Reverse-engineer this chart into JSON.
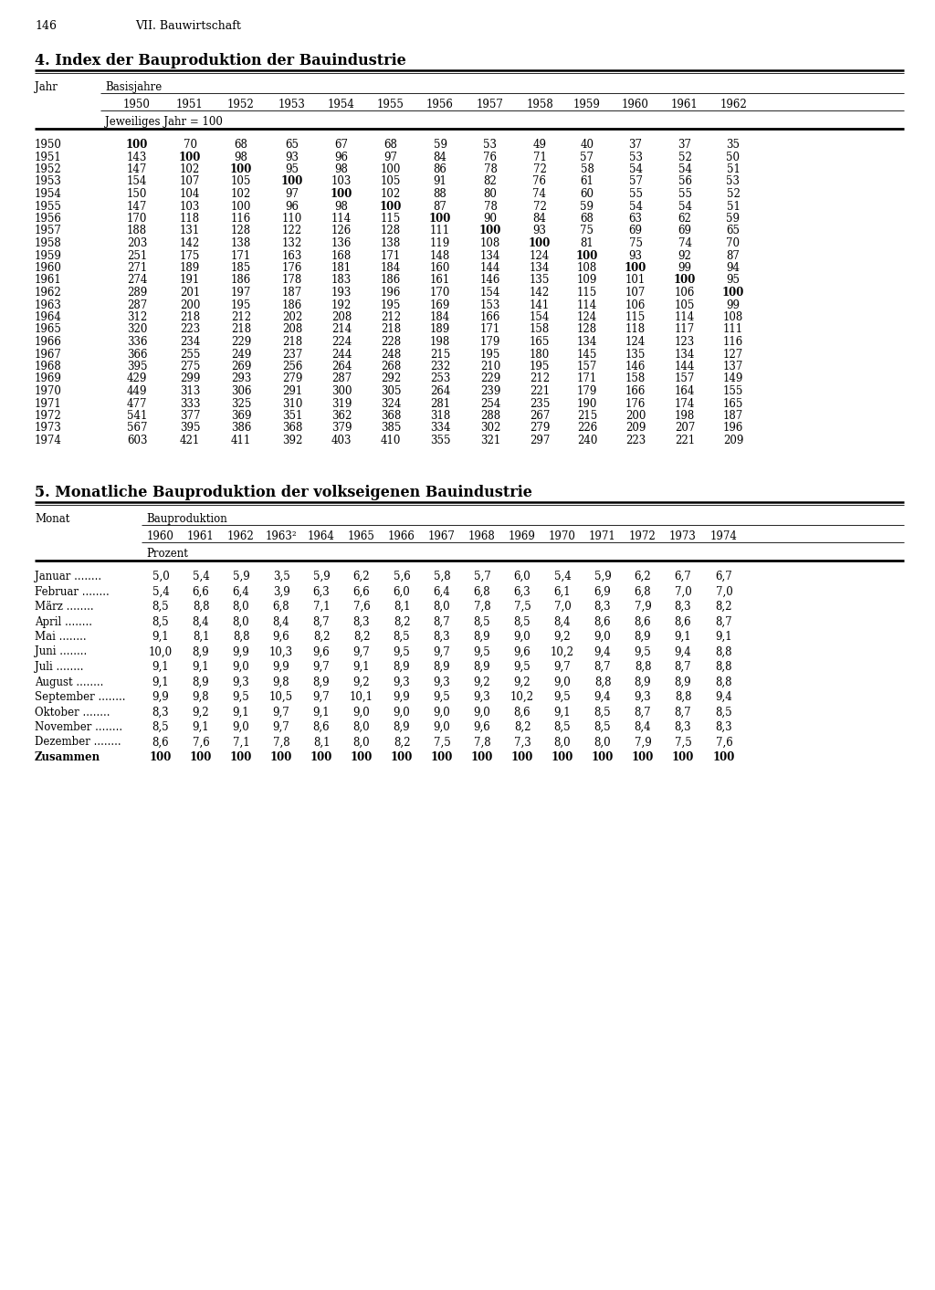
{
  "page_header": "146",
  "page_subheader": "VII. Bauwirtschaft",
  "table1_title": "4. Index der Bauproduktion der Bauindustrie",
  "table1_col_header1": "Jahr",
  "table1_col_header2": "Basisjahre",
  "table1_years_label": "Jeweiliges Jahr = 100",
  "table1_base_years": [
    "1950",
    "1951",
    "1952",
    "1953",
    "1954",
    "1955",
    "1956",
    "1957",
    "1958",
    "1959",
    "1960",
    "1961",
    "1962"
  ],
  "table1_rows": [
    [
      "1950",
      "100",
      "70",
      "68",
      "65",
      "67",
      "68",
      "59",
      "53",
      "49",
      "40",
      "37",
      "37",
      "35"
    ],
    [
      "1951",
      "143",
      "100",
      "98",
      "93",
      "96",
      "97",
      "84",
      "76",
      "71",
      "57",
      "53",
      "52",
      "50"
    ],
    [
      "1952",
      "147",
      "102",
      "100",
      "95",
      "98",
      "100",
      "86",
      "78",
      "72",
      "58",
      "54",
      "54",
      "51"
    ],
    [
      "1953",
      "154",
      "107",
      "105",
      "100",
      "103",
      "105",
      "91",
      "82",
      "76",
      "61",
      "57",
      "56",
      "53"
    ],
    [
      "1954",
      "150",
      "104",
      "102",
      "97",
      "100",
      "102",
      "88",
      "80",
      "74",
      "60",
      "55",
      "55",
      "52"
    ],
    [
      "1955",
      "147",
      "103",
      "100",
      "96",
      "98",
      "100",
      "87",
      "78",
      "72",
      "59",
      "54",
      "54",
      "51"
    ],
    [
      "1956",
      "170",
      "118",
      "116",
      "110",
      "114",
      "115",
      "100",
      "90",
      "84",
      "68",
      "63",
      "62",
      "59"
    ],
    [
      "1957",
      "188",
      "131",
      "128",
      "122",
      "126",
      "128",
      "111",
      "100",
      "93",
      "75",
      "69",
      "69",
      "65"
    ],
    [
      "1958",
      "203",
      "142",
      "138",
      "132",
      "136",
      "138",
      "119",
      "108",
      "100",
      "81",
      "75",
      "74",
      "70"
    ],
    [
      "1959",
      "251",
      "175",
      "171",
      "163",
      "168",
      "171",
      "148",
      "134",
      "124",
      "100",
      "93",
      "92",
      "87"
    ],
    [
      "1960",
      "271",
      "189",
      "185",
      "176",
      "181",
      "184",
      "160",
      "144",
      "134",
      "108",
      "100",
      "99",
      "94"
    ],
    [
      "1961",
      "274",
      "191",
      "186",
      "178",
      "183",
      "186",
      "161",
      "146",
      "135",
      "109",
      "101",
      "100",
      "95"
    ],
    [
      "1962",
      "289",
      "201",
      "197",
      "187",
      "193",
      "196",
      "170",
      "154",
      "142",
      "115",
      "107",
      "106",
      "100"
    ],
    [
      "1963",
      "287",
      "200",
      "195",
      "186",
      "192",
      "195",
      "169",
      "153",
      "141",
      "114",
      "106",
      "105",
      "99"
    ],
    [
      "1964",
      "312",
      "218",
      "212",
      "202",
      "208",
      "212",
      "184",
      "166",
      "154",
      "124",
      "115",
      "114",
      "108"
    ],
    [
      "1965",
      "320",
      "223",
      "218",
      "208",
      "214",
      "218",
      "189",
      "171",
      "158",
      "128",
      "118",
      "117",
      "111"
    ],
    [
      "1966",
      "336",
      "234",
      "229",
      "218",
      "224",
      "228",
      "198",
      "179",
      "165",
      "134",
      "124",
      "123",
      "116"
    ],
    [
      "1967",
      "366",
      "255",
      "249",
      "237",
      "244",
      "248",
      "215",
      "195",
      "180",
      "145",
      "135",
      "134",
      "127"
    ],
    [
      "1968",
      "395",
      "275",
      "269",
      "256",
      "264",
      "268",
      "232",
      "210",
      "195",
      "157",
      "146",
      "144",
      "137"
    ],
    [
      "1969",
      "429",
      "299",
      "293",
      "279",
      "287",
      "292",
      "253",
      "229",
      "212",
      "171",
      "158",
      "157",
      "149"
    ],
    [
      "1970",
      "449",
      "313",
      "306",
      "291",
      "300",
      "305",
      "264",
      "239",
      "221",
      "179",
      "166",
      "164",
      "155"
    ],
    [
      "1971",
      "477",
      "333",
      "325",
      "310",
      "319",
      "324",
      "281",
      "254",
      "235",
      "190",
      "176",
      "174",
      "165"
    ],
    [
      "1972",
      "541",
      "377",
      "369",
      "351",
      "362",
      "368",
      "318",
      "288",
      "267",
      "215",
      "200",
      "198",
      "187"
    ],
    [
      "1973",
      "567",
      "395",
      "386",
      "368",
      "379",
      "385",
      "334",
      "302",
      "279",
      "226",
      "209",
      "207",
      "196"
    ],
    [
      "1974",
      "603",
      "421",
      "411",
      "392",
      "403",
      "410",
      "355",
      "321",
      "297",
      "240",
      "223",
      "221",
      "209"
    ]
  ],
  "table2_title": "5. Monatliche Bauproduktion der volkseigenen Bauindustrie",
  "table2_col_header1": "Monat",
  "table2_col_header2": "Bauproduktion",
  "table2_years_label": "Prozent",
  "table2_base_years": [
    "1960",
    "1961",
    "1962",
    "1963²",
    "1964",
    "1965",
    "1966",
    "1967",
    "1968",
    "1969",
    "1970",
    "1971",
    "1972",
    "1973",
    "1974"
  ],
  "table2_months": [
    "Januar",
    "Februar",
    "März",
    "April",
    "Mai",
    "Juni",
    "Juli",
    "August",
    "September",
    "Oktober",
    "November",
    "Dezember",
    "Zusammen"
  ],
  "table2_month_dots": [
    true,
    true,
    true,
    true,
    true,
    true,
    true,
    true,
    true,
    true,
    true,
    true,
    false
  ],
  "table2_rows": [
    [
      "5,0",
      "5,4",
      "5,9",
      "3,5",
      "5,9",
      "6,2",
      "5,6",
      "5,8",
      "5,7",
      "6,0",
      "5,4",
      "5,9",
      "6,2",
      "6,7",
      "6,7"
    ],
    [
      "5,4",
      "6,6",
      "6,4",
      "3,9",
      "6,3",
      "6,6",
      "6,0",
      "6,4",
      "6,8",
      "6,3",
      "6,1",
      "6,9",
      "6,8",
      "7,0",
      "7,0"
    ],
    [
      "8,5",
      "8,8",
      "8,0",
      "6,8",
      "7,1",
      "7,6",
      "8,1",
      "8,0",
      "7,8",
      "7,5",
      "7,0",
      "8,3",
      "7,9",
      "8,3",
      "8,2"
    ],
    [
      "8,5",
      "8,4",
      "8,0",
      "8,4",
      "8,7",
      "8,3",
      "8,2",
      "8,7",
      "8,5",
      "8,5",
      "8,4",
      "8,6",
      "8,6",
      "8,6",
      "8,7"
    ],
    [
      "9,1",
      "8,1",
      "8,8",
      "9,6",
      "8,2",
      "8,2",
      "8,5",
      "8,3",
      "8,9",
      "9,0",
      "9,2",
      "9,0",
      "8,9",
      "9,1",
      "9,1"
    ],
    [
      "10,0",
      "8,9",
      "9,9",
      "10,3",
      "9,6",
      "9,7",
      "9,5",
      "9,7",
      "9,5",
      "9,6",
      "10,2",
      "9,4",
      "9,5",
      "9,4",
      "8,8"
    ],
    [
      "9,1",
      "9,1",
      "9,0",
      "9,9",
      "9,7",
      "9,1",
      "8,9",
      "8,9",
      "8,9",
      "9,5",
      "9,7",
      "8,7",
      "8,8",
      "8,7",
      "8,8"
    ],
    [
      "9,1",
      "8,9",
      "9,3",
      "9,8",
      "8,9",
      "9,2",
      "9,3",
      "9,3",
      "9,2",
      "9,2",
      "9,0",
      "8,8",
      "8,9",
      "8,9",
      "8,8"
    ],
    [
      "9,9",
      "9,8",
      "9,5",
      "10,5",
      "9,7",
      "10,1",
      "9,9",
      "9,5",
      "9,3",
      "10,2",
      "9,5",
      "9,4",
      "9,3",
      "8,8",
      "9,4"
    ],
    [
      "8,3",
      "9,2",
      "9,1",
      "9,7",
      "9,1",
      "9,0",
      "9,0",
      "9,0",
      "9,0",
      "8,6",
      "9,1",
      "8,5",
      "8,7",
      "8,7",
      "8,5"
    ],
    [
      "8,5",
      "9,1",
      "9,0",
      "9,7",
      "8,6",
      "8,0",
      "8,9",
      "9,0",
      "9,6",
      "8,2",
      "8,5",
      "8,5",
      "8,4",
      "8,3",
      "8,3"
    ],
    [
      "8,6",
      "7,6",
      "7,1",
      "7,8",
      "8,1",
      "8,0",
      "8,2",
      "7,5",
      "7,8",
      "7,3",
      "8,0",
      "8,0",
      "7,9",
      "7,5",
      "7,6"
    ],
    [
      "100",
      "100",
      "100",
      "100",
      "100",
      "100",
      "100",
      "100",
      "100",
      "100",
      "100",
      "100",
      "100",
      "100",
      "100"
    ]
  ]
}
